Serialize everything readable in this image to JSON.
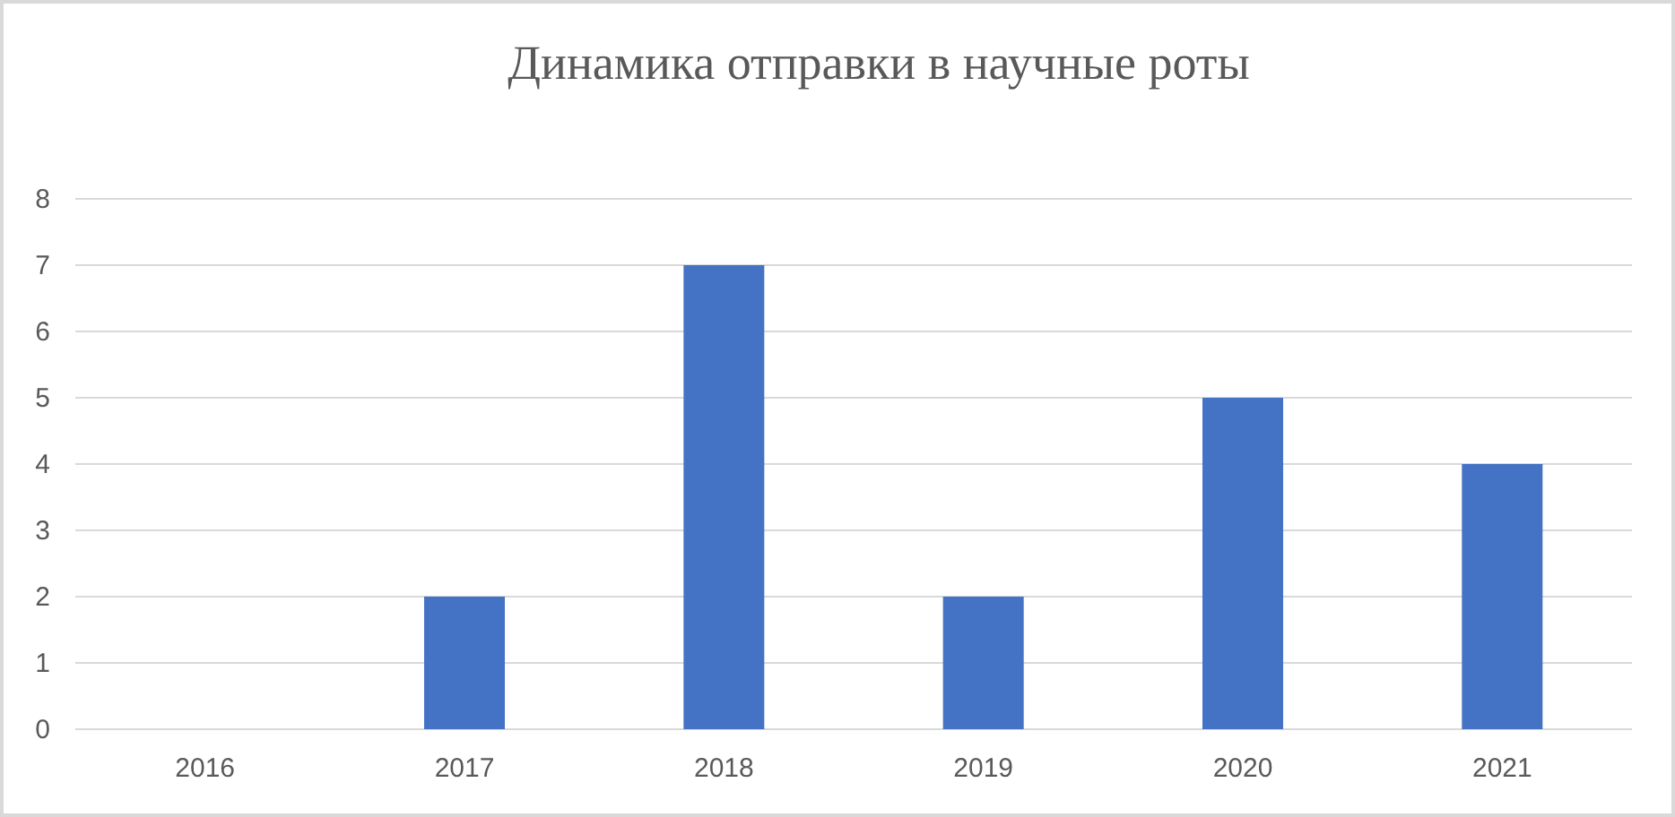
{
  "chart_data": {
    "type": "bar",
    "title": "Динамика отправки в научные роты",
    "categories": [
      "2016",
      "2017",
      "2018",
      "2019",
      "2020",
      "2021"
    ],
    "values": [
      0,
      2,
      7,
      2,
      5,
      4
    ],
    "color": "#4472c4",
    "ylim": [
      0,
      8
    ],
    "yticks": [
      0,
      1,
      2,
      3,
      4,
      5,
      6,
      7,
      8
    ],
    "grid": "y",
    "legend": false
  }
}
